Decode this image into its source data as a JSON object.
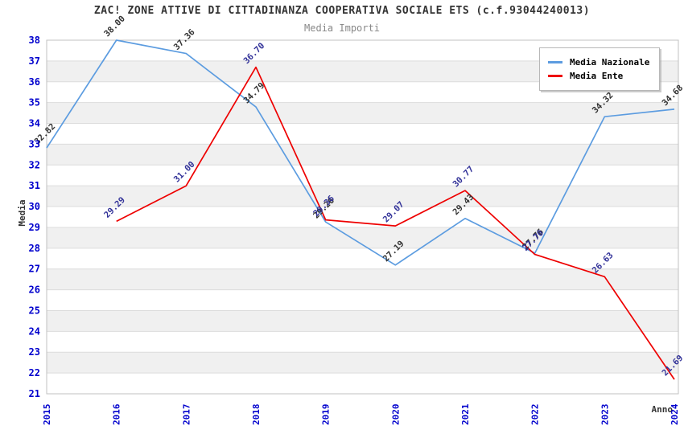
{
  "title": "ZAC! ZONE ATTIVE DI CITTADINANZA COOPERATIVA SOCIALE ETS (c.f.93044240013)",
  "subtitle": "Media Importi",
  "chart_data": {
    "type": "line",
    "x": [
      2015,
      2016,
      2017,
      2018,
      2019,
      2020,
      2021,
      2022,
      2023,
      2024
    ],
    "series": [
      {
        "name": "Media Nazionale",
        "color": "#5c9ce0",
        "label_color": "#333333",
        "values": [
          32.82,
          38.0,
          37.36,
          34.79,
          29.26,
          27.19,
          29.43,
          27.76,
          34.32,
          34.68
        ]
      },
      {
        "name": "Media Ente",
        "color": "#ee0000",
        "label_color": "#333399",
        "values": [
          null,
          29.29,
          31.0,
          36.7,
          29.36,
          29.07,
          30.77,
          27.7,
          26.63,
          21.69
        ]
      }
    ],
    "xlabel": "Anno",
    "ylabel": "Media",
    "ylim": [
      21,
      38
    ],
    "ytick_step": 1,
    "grid": true,
    "legend_position": "top-right",
    "colors": {
      "axis_tick_text": "#0000cd",
      "grid_line": "#dcdcdc",
      "band_fill": "#f0f0f0",
      "frame": "#c0c0c0",
      "title_text": "#333333",
      "subtitle_text": "#888888"
    }
  }
}
